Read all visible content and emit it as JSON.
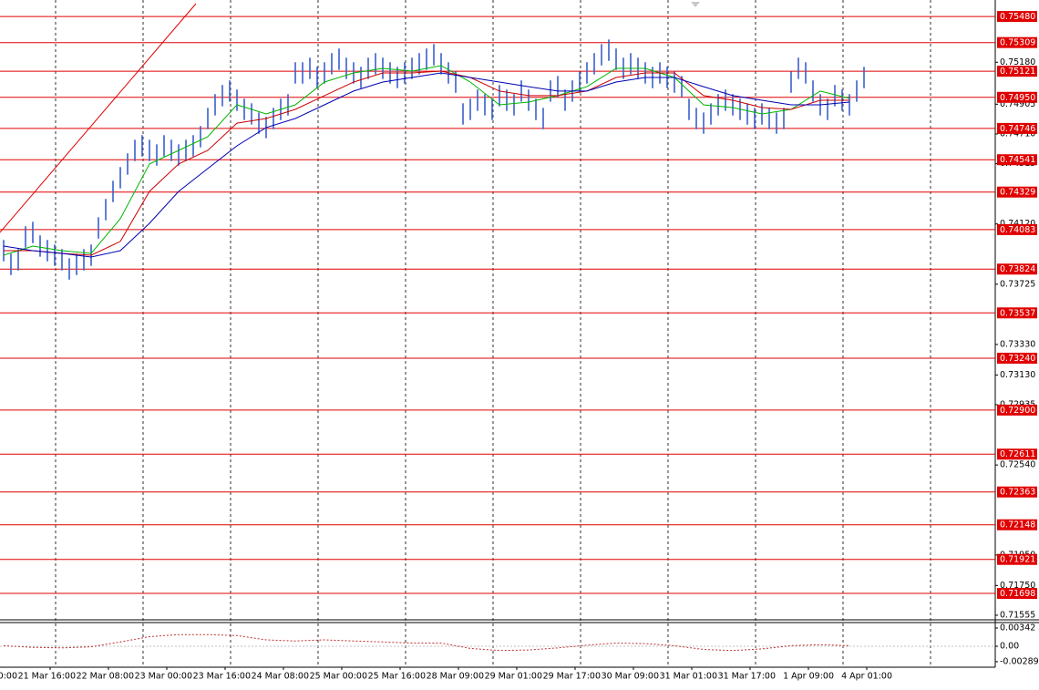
{
  "chart_data": {
    "type": "ohlc",
    "high": [
      0.74015,
      0.73925,
      0.73955,
      0.74105,
      0.74134,
      0.74045,
      0.74015,
      0.73985,
      0.73955,
      0.73895,
      0.73925,
      0.73955,
      0.73985,
      0.74164,
      0.74284,
      0.74403,
      0.74493,
      0.74583,
      0.74672,
      0.74702,
      0.74672,
      0.74642,
      0.74702,
      0.74672,
      0.74642,
      0.74672,
      0.74702,
      0.74762,
      0.74881,
      0.74971,
      0.75031,
      0.75061,
      0.75001,
      0.74941,
      0.74911,
      0.74851,
      0.74822,
      0.74881,
      0.74941,
      0.74971,
      0.7518,
      0.7518,
      0.7521,
      0.7515,
      0.7518,
      0.7524,
      0.7527,
      0.7521,
      0.7518,
      0.7515,
      0.7521,
      0.7524,
      0.7521,
      0.7518,
      0.7515,
      0.7518,
      0.7521,
      0.7524,
      0.7527,
      0.75299,
      0.7524,
      0.7518,
      0.7512,
      0.74911,
      0.74941,
      0.75001,
      0.74971,
      0.74941,
      0.75031,
      0.75001,
      0.74971,
      0.75061,
      0.75001,
      0.74941,
      0.74881,
      0.75061,
      0.7509,
      0.75001,
      0.75061,
      0.7512,
      0.7518,
      0.7524,
      0.75299,
      0.75329,
      0.7527,
      0.7521,
      0.7524,
      0.7521,
      0.7518,
      0.7515,
      0.7518,
      0.7515,
      0.7512,
      0.7509,
      0.74941,
      0.74881,
      0.74851,
      0.74911,
      0.74971,
      0.75001,
      0.74971,
      0.74941,
      0.74911,
      0.74881,
      0.74911,
      0.74881,
      0.74851,
      0.74881,
      0.7512,
      0.7521,
      0.7518,
      0.75061,
      0.74971,
      0.74941,
      0.75031,
      0.75001,
      0.74971,
      0.75061,
      0.7515
    ],
    "low": [
      0.73875,
      0.73785,
      0.73815,
      0.73965,
      0.73994,
      0.73905,
      0.73875,
      0.73845,
      0.73815,
      0.73755,
      0.73785,
      0.73815,
      0.73845,
      0.74024,
      0.74144,
      0.74263,
      0.74353,
      0.74443,
      0.74532,
      0.74562,
      0.74532,
      0.74502,
      0.74562,
      0.74532,
      0.74502,
      0.74532,
      0.74562,
      0.74622,
      0.74741,
      0.74831,
      0.74891,
      0.74921,
      0.74861,
      0.74801,
      0.74771,
      0.74711,
      0.74682,
      0.74741,
      0.74801,
      0.74831,
      0.7504,
      0.7504,
      0.7507,
      0.7501,
      0.7504,
      0.751,
      0.7513,
      0.7507,
      0.7504,
      0.7501,
      0.7507,
      0.751,
      0.7507,
      0.7504,
      0.7501,
      0.7504,
      0.7507,
      0.751,
      0.7513,
      0.75159,
      0.751,
      0.7504,
      0.7498,
      0.74771,
      0.74801,
      0.74861,
      0.74831,
      0.74801,
      0.74891,
      0.74861,
      0.74831,
      0.74921,
      0.74861,
      0.74801,
      0.74741,
      0.74921,
      0.7495,
      0.74861,
      0.74921,
      0.7498,
      0.7504,
      0.751,
      0.75159,
      0.75189,
      0.7513,
      0.7507,
      0.751,
      0.7507,
      0.7504,
      0.7501,
      0.7504,
      0.7501,
      0.7498,
      0.7495,
      0.74801,
      0.74741,
      0.74711,
      0.74771,
      0.74831,
      0.74861,
      0.74831,
      0.74801,
      0.74771,
      0.74741,
      0.74771,
      0.74741,
      0.74711,
      0.74741,
      0.7498,
      0.7507,
      0.7504,
      0.74921,
      0.74831,
      0.74801,
      0.74891,
      0.74861,
      0.74831,
      0.74921,
      0.7501
    ],
    "color": "#3a5fcd",
    "xlim": [
      0,
      136.5
    ],
    "xticks": [
      {
        "value": -1.125,
        "label": "0:00"
      },
      {
        "value": 6.875,
        "label": "21 Mar 16:00"
      },
      {
        "value": 14.875,
        "label": "22 Mar 08:00"
      },
      {
        "value": 22.875,
        "label": "23 Mar 00:00"
      },
      {
        "value": 30.875,
        "label": "23 Mar 16:00"
      },
      {
        "value": 38.875,
        "label": "24 Mar 08:00"
      },
      {
        "value": 46.875,
        "label": "25 Mar 00:00"
      },
      {
        "value": 54.875,
        "label": "25 Mar 16:00"
      },
      {
        "value": 62.875,
        "label": "28 Mar 09:00"
      },
      {
        "value": 70.875,
        "label": "29 Mar 01:00"
      },
      {
        "value": 78.875,
        "label": "29 Mar 17:00"
      },
      {
        "value": 86.875,
        "label": "30 Mar 09:00"
      },
      {
        "value": 94.875,
        "label": "31 Mar 01:00"
      },
      {
        "value": 102.875,
        "label": "31 Mar 17:00"
      },
      {
        "value": 110.875,
        "label": "1 Apr 09:00"
      },
      {
        "value": 118.875,
        "label": "4 Apr 01:00"
      }
    ],
    "ylim": [
      0.71525,
      0.75588
    ],
    "yticks": [
      {
        "value": 0.7518,
        "label": "0.75180"
      },
      {
        "value": 0.74905,
        "label": "0.74905"
      },
      {
        "value": 0.7471,
        "label": "0.74710"
      },
      {
        "value": 0.74515,
        "label": "0.74515"
      },
      {
        "value": 0.7412,
        "label": "0.74120"
      },
      {
        "value": 0.73725,
        "label": "0.73725"
      },
      {
        "value": 0.7333,
        "label": "0.73330"
      },
      {
        "value": 0.7313,
        "label": "0.73130"
      },
      {
        "value": 0.72935,
        "label": "0.72935"
      },
      {
        "value": 0.7254,
        "label": "0.72540"
      },
      {
        "value": 0.7195,
        "label": "0.71950"
      },
      {
        "value": 0.7175,
        "label": "0.71750"
      },
      {
        "value": 0.71555,
        "label": "0.71555"
      }
    ],
    "level_color": "#e00000",
    "levels": [
      {
        "value": 0.7548,
        "label": "0.75480"
      },
      {
        "value": 0.75309,
        "label": "0.75309"
      },
      {
        "value": 0.75121,
        "label": "0.75121"
      },
      {
        "value": 0.7495,
        "label": "0.74950"
      },
      {
        "value": 0.74746,
        "label": "0.74746"
      },
      {
        "value": 0.74541,
        "label": "0.74541"
      },
      {
        "value": 0.74329,
        "label": "0.74329"
      },
      {
        "value": 0.74083,
        "label": "0.74083"
      },
      {
        "value": 0.73824,
        "label": "0.73824"
      },
      {
        "value": 0.73537,
        "label": "0.73537"
      },
      {
        "value": 0.7324,
        "label": "0.73240"
      },
      {
        "value": 0.729,
        "label": "0.72900"
      },
      {
        "value": 0.72611,
        "label": "0.72611"
      },
      {
        "value": 0.72363,
        "label": "0.72363"
      },
      {
        "value": 0.72148,
        "label": "0.72148"
      },
      {
        "value": 0.71921,
        "label": "0.71921"
      },
      {
        "value": 0.71698,
        "label": "0.71698"
      }
    ],
    "indicators": {
      "x": [
        0,
        4,
        8,
        12,
        16,
        20,
        24,
        28,
        32,
        36,
        40,
        44,
        48,
        52,
        56,
        60,
        64,
        68,
        72,
        76,
        80,
        84,
        88,
        92,
        96,
        100,
        104,
        108,
        112,
        116
      ],
      "series": [
        {
          "color": "#00b400",
          "values": [
            0.73915,
            0.73975,
            0.73945,
            0.73927,
            0.74154,
            0.74513,
            0.74602,
            0.74692,
            0.74901,
            0.74841,
            0.74901,
            0.7505,
            0.7511,
            0.7514,
            0.75122,
            0.75158,
            0.7505,
            0.74901,
            0.74919,
            0.74961,
            0.7502,
            0.7514,
            0.7514,
            0.7508,
            0.74901,
            0.74883,
            0.74841,
            0.74871,
            0.74991,
            0.74943
          ]
        },
        {
          "color": "#cc0000",
          "values": [
            0.73945,
            0.73945,
            0.73927,
            0.73915,
            0.74005,
            0.74333,
            0.74513,
            0.74602,
            0.74781,
            0.74811,
            0.74871,
            0.74961,
            0.7505,
            0.7511,
            0.7511,
            0.75122,
            0.7508,
            0.74991,
            0.74961,
            0.74961,
            0.74991,
            0.7508,
            0.7511,
            0.7511,
            0.74961,
            0.74931,
            0.74883,
            0.74871,
            0.74931,
            0.74931
          ]
        },
        {
          "color": "#0000b4",
          "values": [
            0.73975,
            0.73945,
            0.73927,
            0.73903,
            0.73945,
            0.74124,
            0.74333,
            0.74483,
            0.74632,
            0.74752,
            0.74811,
            0.74901,
            0.74991,
            0.7505,
            0.7508,
            0.7511,
            0.7508,
            0.7505,
            0.7502,
            0.74991,
            0.74991,
            0.7505,
            0.7508,
            0.7508,
            0.7502,
            0.74961,
            0.74931,
            0.74901,
            0.74901,
            0.74919
          ]
        }
      ]
    },
    "oscillator": {
      "color": "#c03030",
      "ylim": [
        -0.00393,
        0.00445
      ],
      "yticks": [
        0.00342,
        {
          "value": 0,
          "label": "0.00"
        },
        -0.002894
      ],
      "values": [
        0.0001,
        -0.0002,
        -0.0003,
        -0.0001,
        0.0008,
        0.0018,
        0.0022,
        0.0022,
        0.002,
        0.0012,
        0.001,
        0.0012,
        0.001,
        0.0008,
        0.0006,
        0.0006,
        -0.0004,
        -0.0008,
        -0.0007,
        -0.0003,
        0.0002,
        0.0006,
        0.0005,
        0.0001,
        -0.0006,
        -0.0008,
        -0.0005,
        0.0001,
        0.0003,
        0.0001
      ]
    }
  }
}
